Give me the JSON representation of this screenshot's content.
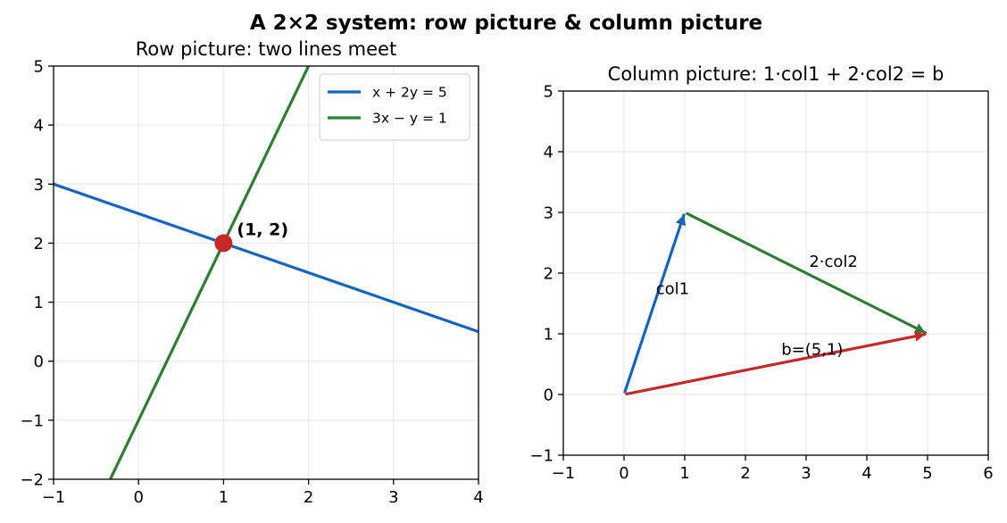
{
  "figure": {
    "suptitle": "A 2×2 system: row picture & column picture"
  },
  "colors": {
    "line1": "#1565c0",
    "line2": "#2e7d32",
    "solution": "#c62828"
  },
  "chart_data": [
    {
      "type": "line",
      "title": "Row picture: two lines meet",
      "xlabel": "",
      "ylabel": "",
      "xlim": [
        -1,
        4
      ],
      "ylim": [
        -2,
        5
      ],
      "xticks": [
        -1,
        0,
        1,
        2,
        3,
        4
      ],
      "yticks": [
        -2,
        -1,
        0,
        1,
        2,
        3,
        4,
        5
      ],
      "xtick_labels": [
        "−1",
        "0",
        "1",
        "2",
        "3",
        "4"
      ],
      "ytick_labels": [
        "−2",
        "−1",
        "0",
        "1",
        "2",
        "3",
        "4",
        "5"
      ],
      "grid": true,
      "legend_position": "top-right",
      "series": [
        {
          "name": "x + 2y = 5",
          "color": "#1565c0",
          "x": [
            -1,
            4
          ],
          "y": [
            3,
            0.5
          ]
        },
        {
          "name": "3x − y = 1",
          "color": "#2e7d32",
          "x": [
            -0.333,
            2
          ],
          "y": [
            -2,
            5
          ]
        }
      ],
      "point": {
        "x": 1,
        "y": 2,
        "label": "(1, 2)",
        "color": "#c62828"
      }
    },
    {
      "type": "vector",
      "title": "Column picture: 1·col1 + 2·col2 = b",
      "xlabel": "",
      "ylabel": "",
      "xlim": [
        -1,
        6
      ],
      "ylim": [
        -1,
        5
      ],
      "xticks": [
        -1,
        0,
        1,
        2,
        3,
        4,
        5,
        6
      ],
      "yticks": [
        -1,
        0,
        1,
        2,
        3,
        4,
        5
      ],
      "xtick_labels": [
        "−1",
        "0",
        "1",
        "2",
        "3",
        "4",
        "5",
        "6"
      ],
      "ytick_labels": [
        "−1",
        "0",
        "1",
        "2",
        "3",
        "4",
        "5"
      ],
      "grid": true,
      "vectors": [
        {
          "label": "col1",
          "from": [
            0,
            0
          ],
          "to": [
            1,
            3
          ],
          "color": "#1565c0",
          "label_at": [
            0.8,
            1.75
          ]
        },
        {
          "label": "2·col2",
          "from": [
            1,
            3
          ],
          "to": [
            5,
            1
          ],
          "color": "#2e7d32",
          "label_at": [
            3.45,
            2.2
          ]
        },
        {
          "label": "b=(5,1)",
          "from": [
            0,
            0
          ],
          "to": [
            5,
            1
          ],
          "color": "#c62828",
          "label_at": [
            3.1,
            0.75
          ]
        }
      ]
    }
  ]
}
